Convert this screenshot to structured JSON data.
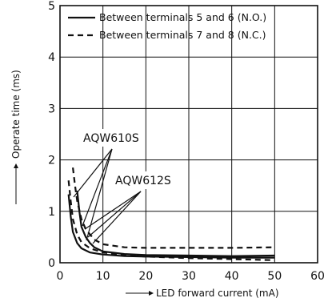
{
  "chart_data": {
    "type": "line",
    "xlabel": "LED forward current (mA)",
    "ylabel": "Operate time (ms)",
    "xlim": [
      0,
      60
    ],
    "ylim": [
      0,
      5
    ],
    "xticks": [
      0,
      10,
      20,
      30,
      40,
      50,
      60
    ],
    "yticks": [
      0,
      1,
      2,
      3,
      4,
      5
    ],
    "grid": true,
    "legend": [
      {
        "label": "Between terminals 5 and 6 (N.O.)",
        "style": "solid"
      },
      {
        "label": "Between terminals 7 and 8 (N.C.)",
        "style": "dashed"
      }
    ],
    "series": [
      {
        "group": "AQW610S",
        "style": "solid",
        "x": [
          2,
          2.5,
          3,
          4,
          5,
          7,
          10,
          15,
          20,
          30,
          40,
          50
        ],
        "y": [
          1.33,
          0.9,
          0.6,
          0.38,
          0.28,
          0.2,
          0.16,
          0.13,
          0.12,
          0.11,
          0.1,
          0.1
        ]
      },
      {
        "group": "AQW612S",
        "style": "solid",
        "x": [
          4,
          4.5,
          5,
          6,
          7,
          8,
          10,
          15,
          20,
          30,
          40,
          50
        ],
        "y": [
          1.4,
          1.0,
          0.7,
          0.5,
          0.38,
          0.3,
          0.22,
          0.17,
          0.15,
          0.14,
          0.13,
          0.14
        ]
      },
      {
        "group": "AQW610S",
        "style": "dashed",
        "x": [
          2,
          2.5,
          3,
          4,
          5,
          7,
          10,
          15,
          20,
          30,
          40,
          50
        ],
        "y": [
          1.6,
          1.2,
          0.85,
          0.55,
          0.4,
          0.28,
          0.2,
          0.15,
          0.12,
          0.09,
          0.07,
          0.05
        ]
      },
      {
        "group": "AQW612S",
        "style": "dashed",
        "x": [
          3,
          3.5,
          4,
          5,
          6,
          8,
          10,
          15,
          20,
          30,
          40,
          50
        ],
        "y": [
          1.85,
          1.5,
          1.2,
          0.85,
          0.65,
          0.45,
          0.36,
          0.3,
          0.29,
          0.29,
          0.29,
          0.3
        ]
      }
    ],
    "annotations": [
      "AQW610S",
      "AQW612S"
    ]
  }
}
